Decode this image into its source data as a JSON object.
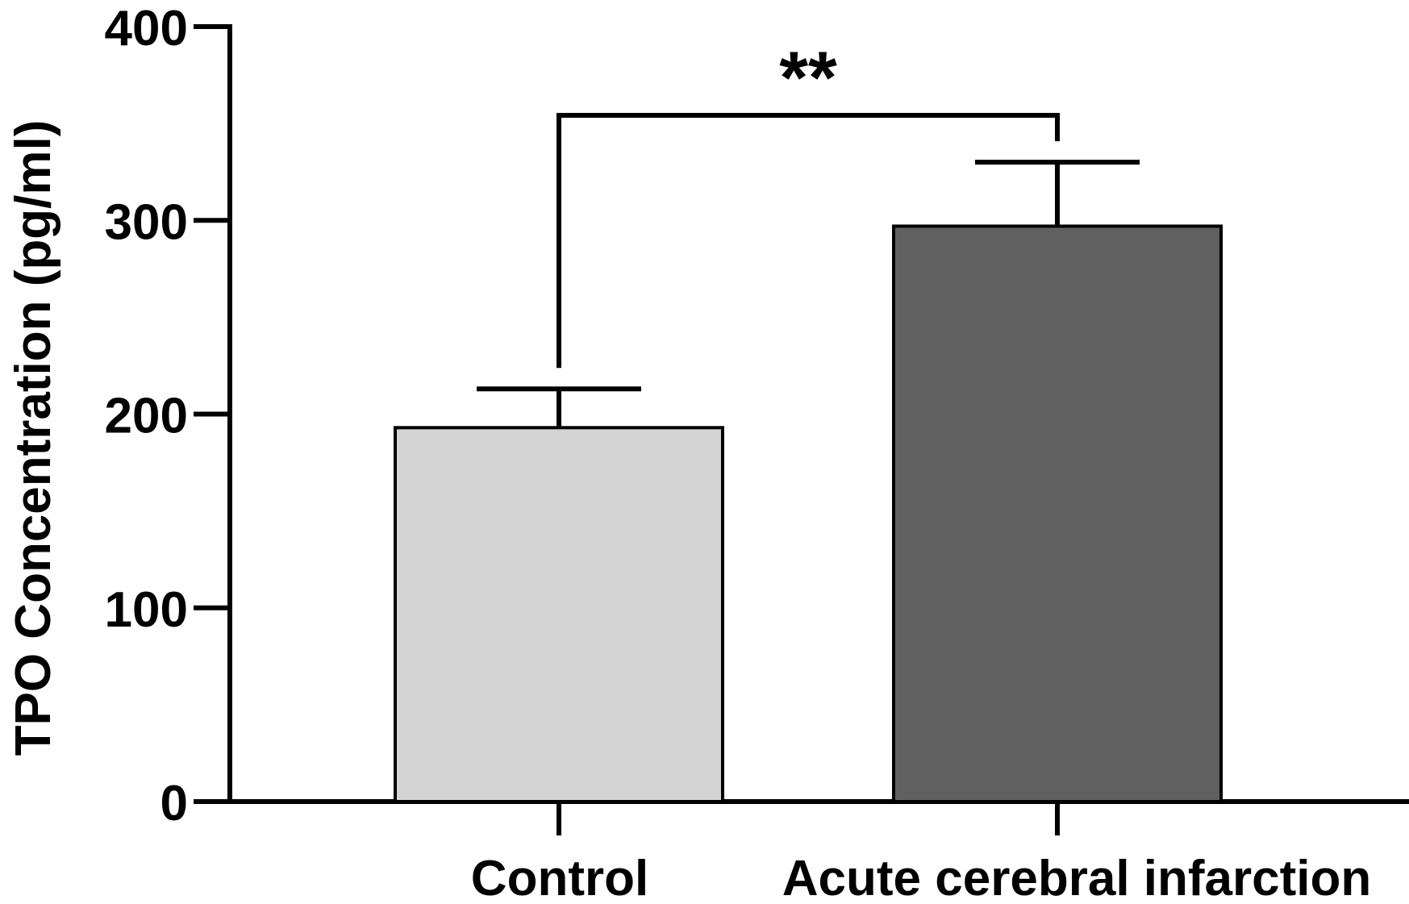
{
  "chart_data": {
    "type": "bar",
    "categories": [
      "Control",
      "Acute cerebral infarction"
    ],
    "values": [
      193,
      297
    ],
    "error": [
      20,
      33
    ],
    "colors": [
      "#d4d4d4",
      "#606060"
    ],
    "ylabel": "TPO Concentration (pg/ml)",
    "xlabel": "",
    "title": "",
    "ylim": [
      0,
      400
    ],
    "yticks": [
      0,
      100,
      200,
      300,
      400
    ],
    "ytick_labels": [
      "0",
      "100",
      "200",
      "300",
      "400"
    ],
    "grid": false,
    "significance": {
      "from": 0,
      "to": 1,
      "label": "**"
    }
  }
}
